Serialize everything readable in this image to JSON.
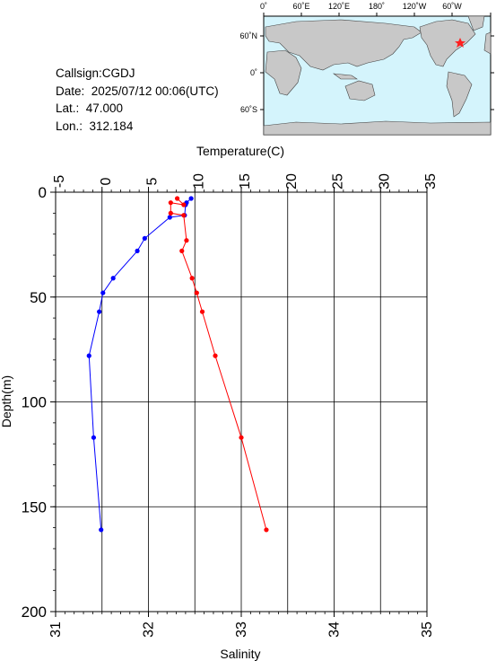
{
  "meta": {
    "callsign": "Callsign:CGDJ",
    "date": "Date:  2025/07/12 00:06(UTC)",
    "lat": "Lat.:  47.000",
    "lon": "Lon.:  312.184"
  },
  "map": {
    "lon_labels": [
      "0˚",
      "60˚E",
      "120˚E",
      "180˚",
      "120˚W",
      "60˚W"
    ],
    "lat_labels": [
      "60˚N",
      "0˚",
      "60˚S"
    ],
    "ocean_color": "#d4f4fc",
    "land_color": "#c8c8c8",
    "marker_color": "#ff2020",
    "marker_lat": 47.0,
    "marker_lon": 312.184
  },
  "chart_data": {
    "type": "line",
    "title": "",
    "top_axis": {
      "label": "Temperature(C)",
      "range": [
        -5,
        35
      ],
      "ticks": [
        "-5",
        "0",
        "5",
        "10",
        "15",
        "20",
        "25",
        "30",
        "35"
      ],
      "tick_values": [
        -5,
        0,
        5,
        10,
        15,
        20,
        25,
        30,
        35
      ]
    },
    "bottom_axis": {
      "label": "Salinity",
      "range": [
        31,
        35
      ],
      "ticks": [
        "31",
        "32",
        "33",
        "34",
        "35"
      ],
      "tick_values": [
        31,
        32,
        33,
        34,
        35
      ]
    },
    "y_axis": {
      "label": "Depth(m)",
      "range": [
        0,
        200
      ],
      "inverted": true,
      "ticks": [
        "0",
        "50",
        "100",
        "150",
        "200"
      ],
      "tick_values": [
        0,
        50,
        100,
        150,
        200
      ]
    },
    "grid": true,
    "series": [
      {
        "axis": "top",
        "color": "#0000ff",
        "points": [
          {
            "x": 9.6,
            "y": 3
          },
          {
            "x": 9.1,
            "y": 5
          },
          {
            "x": 9.0,
            "y": 6
          },
          {
            "x": 8.9,
            "y": 11
          },
          {
            "x": 7.3,
            "y": 12
          },
          {
            "x": 4.6,
            "y": 22
          },
          {
            "x": 3.8,
            "y": 28
          },
          {
            "x": 1.2,
            "y": 41
          },
          {
            "x": 0.1,
            "y": 48
          },
          {
            "x": -0.3,
            "y": 57
          },
          {
            "x": -1.4,
            "y": 78
          },
          {
            "x": -0.9,
            "y": 117
          },
          {
            "x": -0.1,
            "y": 161
          }
        ]
      },
      {
        "axis": "bottom",
        "color": "#ff0000",
        "points": [
          {
            "x": 32.31,
            "y": 3
          },
          {
            "x": 32.38,
            "y": 6
          },
          {
            "x": 32.24,
            "y": 5
          },
          {
            "x": 32.24,
            "y": 10
          },
          {
            "x": 32.38,
            "y": 11
          },
          {
            "x": 32.41,
            "y": 23
          },
          {
            "x": 32.36,
            "y": 28
          },
          {
            "x": 32.47,
            "y": 41
          },
          {
            "x": 32.52,
            "y": 48
          },
          {
            "x": 32.58,
            "y": 57
          },
          {
            "x": 32.72,
            "y": 78
          },
          {
            "x": 33.0,
            "y": 117
          },
          {
            "x": 33.27,
            "y": 161
          }
        ]
      }
    ]
  }
}
